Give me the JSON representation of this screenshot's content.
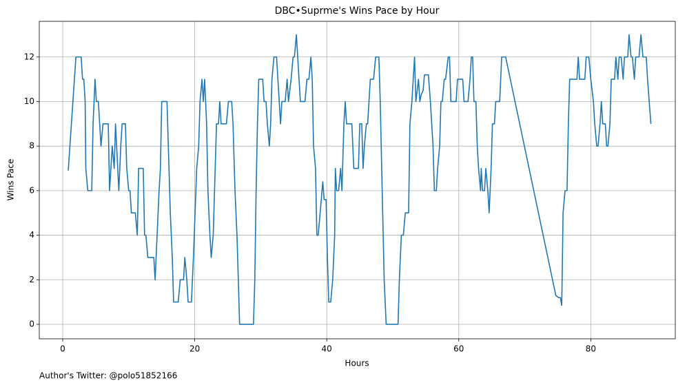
{
  "chart_data": {
    "type": "line",
    "title": "DBC•Suprme's Wins Pace by Hour",
    "xlabel": "Hours",
    "ylabel": "Wins Pace",
    "footnote": "Author's Twitter: @polo51852166",
    "xlim": [
      -3.55,
      92.8
    ],
    "ylim": [
      -0.65,
      13.6
    ],
    "xticks": [
      0,
      20,
      40,
      60,
      80
    ],
    "yticks": [
      0,
      2,
      4,
      6,
      8,
      10,
      12
    ],
    "grid": true,
    "series": [
      {
        "color": "#1f77b4",
        "x": [
          0.84,
          2.0,
          2.8,
          3.0,
          3.2,
          3.4,
          3.5,
          3.8,
          4.4,
          4.6,
          4.9,
          5.1,
          5.4,
          5.8,
          6.1,
          6.9,
          7.1,
          7.5,
          7.8,
          8.0,
          8.5,
          8.8,
          9.0,
          9.5,
          9.7,
          10.0,
          10.2,
          10.4,
          11.0,
          11.3,
          11.5,
          12.2,
          12.4,
          12.6,
          12.9,
          13.8,
          14.0,
          14.3,
          14.6,
          14.8,
          15.0,
          15.8,
          16.0,
          16.3,
          16.6,
          16.8,
          17.5,
          17.8,
          18.3,
          18.5,
          18.8,
          19.0,
          19.5,
          19.8,
          20.3,
          20.6,
          20.8,
          21.1,
          21.3,
          21.5,
          21.8,
          22.0,
          22.3,
          22.5,
          22.8,
          23.1,
          23.3,
          23.6,
          23.8,
          24.0,
          24.8,
          25.1,
          25.6,
          25.8,
          26.1,
          26.4,
          26.6,
          26.8,
          28.9,
          29.1,
          29.3,
          29.5,
          29.7,
          30.3,
          30.5,
          30.8,
          31.0,
          31.3,
          31.5,
          31.7,
          32.0,
          32.4,
          32.6,
          32.8,
          33.0,
          33.2,
          33.7,
          34.0,
          34.2,
          34.6,
          34.9,
          35.1,
          35.4,
          35.6,
          35.8,
          36.0,
          36.7,
          37.0,
          37.3,
          37.6,
          37.8,
          38.0,
          38.3,
          38.5,
          38.7,
          39.0,
          39.4,
          39.6,
          39.9,
          40.1,
          40.3,
          40.6,
          40.9,
          41.2,
          41.3,
          41.5,
          41.8,
          42.1,
          42.3,
          42.6,
          42.8,
          43.0,
          43.8,
          44.1,
          44.8,
          45.0,
          45.3,
          45.5,
          45.7,
          46.0,
          46.2,
          46.6,
          47.1,
          47.4,
          47.9,
          48.1,
          48.4,
          48.7,
          49.0,
          50.8,
          51.0,
          51.3,
          51.6,
          51.9,
          52.4,
          52.6,
          52.9,
          53.1,
          53.3,
          53.5,
          53.9,
          54.1,
          54.3,
          54.6,
          54.8,
          55.4,
          55.7,
          56.1,
          56.3,
          56.6,
          56.8,
          57.1,
          57.3,
          57.5,
          57.8,
          58.0,
          58.4,
          58.6,
          58.8,
          59.6,
          59.8,
          60.6,
          60.8,
          61.4,
          61.7,
          61.9,
          62.1,
          62.3,
          62.6,
          62.8,
          63.0,
          63.3,
          63.4,
          63.6,
          63.9,
          64.1,
          64.4,
          64.6,
          64.9,
          65.1,
          65.4,
          65.6,
          66.2,
          66.5,
          67.1,
          74.7,
          75.1,
          75.4,
          75.6,
          75.8,
          76.1,
          76.4,
          76.6,
          76.8,
          77.9,
          78.1,
          78.3,
          79.1,
          79.3,
          79.7,
          80.0,
          80.4,
          80.6,
          80.9,
          81.1,
          81.4,
          81.6,
          81.8,
          82.2,
          82.4,
          82.6,
          82.9,
          83.1,
          83.6,
          83.8,
          84.1,
          84.3,
          84.6,
          84.9,
          85.1,
          85.6,
          85.8,
          86.1,
          86.3,
          86.6,
          86.8,
          87.3,
          87.6,
          87.9,
          88.4,
          88.6,
          89.1
        ],
        "values": [
          6.9,
          12,
          12,
          11,
          11,
          10,
          7,
          6,
          6,
          9,
          11,
          10,
          10,
          8,
          9,
          9,
          6,
          8,
          7,
          9,
          6,
          8,
          9,
          9,
          7,
          6,
          6,
          5,
          5,
          4,
          7,
          7,
          4,
          4,
          3,
          3,
          2,
          4,
          6,
          7,
          10,
          10,
          8,
          5,
          3,
          1,
          1,
          2,
          2,
          3,
          2,
          1,
          1,
          3,
          7,
          8,
          10,
          11,
          10,
          11,
          9,
          6,
          4,
          3,
          4,
          7,
          9,
          9,
          10,
          9,
          9,
          10,
          10,
          9,
          6,
          4,
          2,
          0,
          0,
          2,
          6,
          9,
          11,
          11,
          10,
          10,
          9,
          8,
          9,
          11,
          12,
          12,
          11,
          10,
          9,
          10,
          10,
          11,
          10,
          11,
          12,
          12,
          13,
          12,
          11,
          10,
          10,
          11,
          11,
          12,
          11,
          8,
          7,
          4,
          4,
          5,
          6.4,
          5.6,
          5.6,
          3,
          1,
          1,
          2,
          4,
          7,
          6,
          6,
          7,
          6,
          9,
          10,
          9,
          9,
          7,
          7,
          9,
          9,
          7,
          8,
          9,
          9,
          11,
          11,
          12,
          12,
          10,
          6,
          2,
          0,
          0,
          2,
          4,
          4,
          5,
          5,
          9,
          10,
          11,
          12,
          10,
          11,
          10,
          10.3,
          10.5,
          11.2,
          11.2,
          10,
          8,
          6,
          6,
          7,
          8,
          10,
          10,
          11,
          11,
          12,
          12,
          10,
          10,
          11,
          11,
          10,
          10,
          11,
          12,
          12,
          10,
          10,
          8,
          7,
          6,
          7,
          6,
          6,
          7,
          6,
          5,
          7,
          9,
          9,
          10,
          10,
          12,
          12,
          1.3,
          1.2,
          1.2,
          0.85,
          5,
          6,
          6,
          9,
          11,
          11,
          12,
          11,
          11,
          12,
          12,
          11,
          10,
          9,
          8,
          8,
          9,
          10,
          9,
          9,
          8,
          8,
          9,
          11,
          11,
          12,
          11,
          12,
          12,
          11,
          12,
          12,
          13,
          12,
          12,
          11,
          12,
          12,
          13,
          12,
          12,
          11,
          9
        ]
      }
    ]
  }
}
